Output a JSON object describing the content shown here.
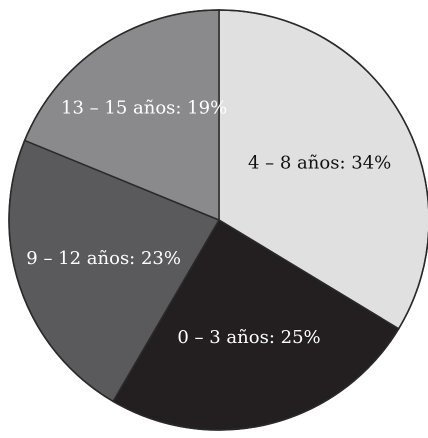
{
  "chart_data": {
    "type": "pie",
    "start_angle_deg": 0,
    "direction": "clockwise",
    "slices": [
      {
        "label": "4 – 8 años: 34%",
        "value": 34,
        "color": "#e0e0e0",
        "text_color": "#111111"
      },
      {
        "label": "0 – 3 años: 25%",
        "value": 25,
        "color": "#231f20",
        "text_color": "#ffffff"
      },
      {
        "label": "9 – 12 años: 23%",
        "value": 23,
        "color": "#5a5a5c",
        "text_color": "#ffffff"
      },
      {
        "label": "13 – 15 años: 19%",
        "value": 19,
        "color": "#8a8a8c",
        "text_color": "#ffffff"
      }
    ],
    "edge_color": "#2a2a2a"
  }
}
